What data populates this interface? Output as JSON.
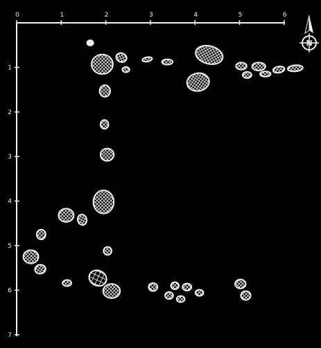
{
  "colors": {
    "background": "#000000",
    "ink": "#f2f2f2"
  },
  "x_axis": {
    "ticks": [
      "0",
      "1",
      "2",
      "3",
      "4",
      "5",
      "6"
    ],
    "min": 0,
    "max": 6
  },
  "y_axis": {
    "ticks": [
      "1",
      "2",
      "3",
      "4",
      "5",
      "6",
      "7"
    ],
    "min": 0,
    "max": 7
  },
  "north_arrow": {
    "letter": "N",
    "icon": "north-arrow-icon"
  },
  "features": [
    {
      "x": 1.65,
      "y": 0.45,
      "rx": 0.07,
      "ry": 0.06,
      "rot": 0,
      "fill": "solid"
    },
    {
      "x": 1.92,
      "y": 0.93,
      "rx": 0.24,
      "ry": 0.22,
      "rot": 0,
      "fill": "crosshatch"
    },
    {
      "x": 2.35,
      "y": 0.78,
      "rx": 0.12,
      "ry": 0.1,
      "rot": 20,
      "fill": "crosshatch"
    },
    {
      "x": 2.45,
      "y": 1.05,
      "rx": 0.08,
      "ry": 0.06,
      "rot": 0,
      "fill": "crosshatch"
    },
    {
      "x": 2.93,
      "y": 0.82,
      "rx": 0.11,
      "ry": 0.05,
      "rot": -10,
      "fill": "crosshatch"
    },
    {
      "x": 3.38,
      "y": 0.88,
      "rx": 0.12,
      "ry": 0.06,
      "rot": 0,
      "fill": "crosshatch"
    },
    {
      "x": 4.32,
      "y": 0.72,
      "rx": 0.31,
      "ry": 0.2,
      "rot": 15,
      "fill": "crosshatch"
    },
    {
      "x": 4.07,
      "y": 1.33,
      "rx": 0.25,
      "ry": 0.2,
      "rot": -10,
      "fill": "crosshatch"
    },
    {
      "x": 5.04,
      "y": 0.97,
      "rx": 0.12,
      "ry": 0.08,
      "rot": 0,
      "fill": "crosshatch"
    },
    {
      "x": 5.43,
      "y": 0.98,
      "rx": 0.15,
      "ry": 0.09,
      "rot": 0,
      "fill": "crosshatch"
    },
    {
      "x": 5.88,
      "y": 1.05,
      "rx": 0.13,
      "ry": 0.07,
      "rot": -10,
      "fill": "crosshatch"
    },
    {
      "x": 6.25,
      "y": 1.02,
      "rx": 0.17,
      "ry": 0.07,
      "rot": -5,
      "fill": "crosshatch"
    },
    {
      "x": 5.17,
      "y": 1.17,
      "rx": 0.1,
      "ry": 0.07,
      "rot": 0,
      "fill": "crosshatch"
    },
    {
      "x": 5.58,
      "y": 1.15,
      "rx": 0.12,
      "ry": 0.06,
      "rot": 0,
      "fill": "crosshatch"
    },
    {
      "x": 1.98,
      "y": 1.53,
      "rx": 0.12,
      "ry": 0.13,
      "rot": 0,
      "fill": "crosshatch"
    },
    {
      "x": 1.97,
      "y": 2.28,
      "rx": 0.09,
      "ry": 0.1,
      "rot": 0,
      "fill": "crosshatch"
    },
    {
      "x": 2.03,
      "y": 2.96,
      "rx": 0.15,
      "ry": 0.14,
      "rot": 0,
      "fill": "crosshatch"
    },
    {
      "x": 1.95,
      "y": 4.02,
      "rx": 0.23,
      "ry": 0.26,
      "rot": 0,
      "fill": "crosshatch"
    },
    {
      "x": 1.11,
      "y": 4.32,
      "rx": 0.17,
      "ry": 0.15,
      "rot": 0,
      "fill": "crosshatch"
    },
    {
      "x": 1.47,
      "y": 4.42,
      "rx": 0.1,
      "ry": 0.12,
      "rot": -15,
      "fill": "crosshatch"
    },
    {
      "x": 0.55,
      "y": 4.75,
      "rx": 0.1,
      "ry": 0.11,
      "rot": 0,
      "fill": "crosshatch"
    },
    {
      "x": 2.04,
      "y": 5.12,
      "rx": 0.09,
      "ry": 0.09,
      "rot": 0,
      "fill": "crosshatch"
    },
    {
      "x": 0.32,
      "y": 5.25,
      "rx": 0.17,
      "ry": 0.15,
      "rot": 0,
      "fill": "crosshatch"
    },
    {
      "x": 0.53,
      "y": 5.53,
      "rx": 0.12,
      "ry": 0.1,
      "rot": -10,
      "fill": "crosshatch"
    },
    {
      "x": 1.13,
      "y": 5.84,
      "rx": 0.1,
      "ry": 0.07,
      "rot": 0,
      "fill": "crosshatch"
    },
    {
      "x": 1.82,
      "y": 5.73,
      "rx": 0.2,
      "ry": 0.17,
      "rot": 25,
      "fill": "hatch"
    },
    {
      "x": 2.13,
      "y": 6.02,
      "rx": 0.19,
      "ry": 0.16,
      "rot": 0,
      "fill": "crosshatch"
    },
    {
      "x": 3.06,
      "y": 5.93,
      "rx": 0.1,
      "ry": 0.09,
      "rot": 0,
      "fill": "crosshatch"
    },
    {
      "x": 3.55,
      "y": 5.9,
      "rx": 0.09,
      "ry": 0.08,
      "rot": 0,
      "fill": "crosshatch"
    },
    {
      "x": 3.82,
      "y": 5.93,
      "rx": 0.1,
      "ry": 0.08,
      "rot": 0,
      "fill": "crosshatch"
    },
    {
      "x": 4.1,
      "y": 6.06,
      "rx": 0.09,
      "ry": 0.07,
      "rot": 0,
      "fill": "crosshatch"
    },
    {
      "x": 3.42,
      "y": 6.12,
      "rx": 0.09,
      "ry": 0.08,
      "rot": 0,
      "fill": "crosshatch"
    },
    {
      "x": 3.68,
      "y": 6.2,
      "rx": 0.09,
      "ry": 0.07,
      "rot": 0,
      "fill": "crosshatch"
    },
    {
      "x": 5.02,
      "y": 5.86,
      "rx": 0.12,
      "ry": 0.1,
      "rot": 0,
      "fill": "crosshatch"
    },
    {
      "x": 5.14,
      "y": 6.12,
      "rx": 0.11,
      "ry": 0.1,
      "rot": 0,
      "fill": "crosshatch"
    }
  ]
}
